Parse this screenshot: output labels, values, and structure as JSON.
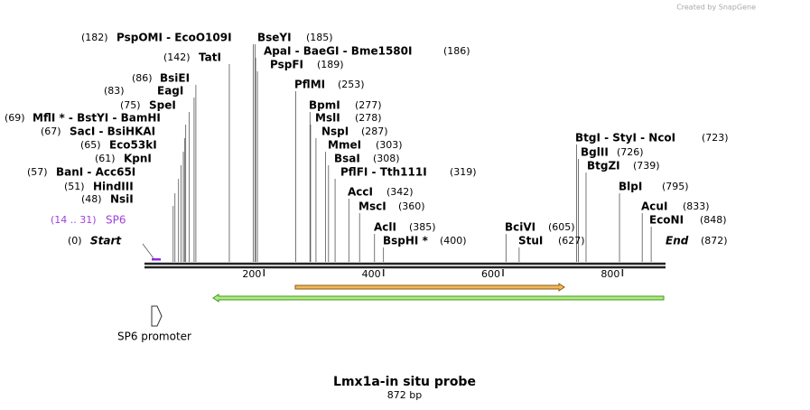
{
  "brand": "Created by SnapGene",
  "title": "Lmx1a-in situ probe",
  "length": "872 bp",
  "sites": [
    {
      "label": "PspOMI  -  EcoO109I",
      "position": "(182)"
    },
    {
      "label": "BseYI",
      "position": "(185)"
    },
    {
      "label": "ApaI  -  BaeGI  -  Bme1580I",
      "position": "(186)"
    },
    {
      "label": "TatI",
      "position": "(142)"
    },
    {
      "label": "PspFI",
      "position": "(189)"
    },
    {
      "label": "BsiEI",
      "position": "(86)"
    },
    {
      "label": "PflMI",
      "position": "(253)"
    },
    {
      "label": "EagI",
      "position": "(83)"
    },
    {
      "label": "SpeI",
      "position": "(75)"
    },
    {
      "label": "BpmI",
      "position": "(277)"
    },
    {
      "label": "MflI *  -  BstYI  -  BamHI",
      "position": "(69)"
    },
    {
      "label": "MslI",
      "position": "(278)"
    },
    {
      "label": "SacI  -  BsiHKAI",
      "position": "(67)"
    },
    {
      "label": "NspI",
      "position": "(287)"
    },
    {
      "label": "Eco53kI",
      "position": "(65)"
    },
    {
      "label": "MmeI",
      "position": "(303)"
    },
    {
      "label": "KpnI",
      "position": "(61)"
    },
    {
      "label": "BsaI",
      "position": "(308)"
    },
    {
      "label": "BanI  -  Acc65I",
      "position": "(57)"
    },
    {
      "label": "PflFI  -  Tth111I",
      "position": "(319)"
    },
    {
      "label": "HindIII",
      "position": "(51)"
    },
    {
      "label": "AccI",
      "position": "(342)"
    },
    {
      "label": "NsiI",
      "position": "(48)"
    },
    {
      "label": "MscI",
      "position": "(360)"
    },
    {
      "label": "AclI",
      "position": "(385)"
    },
    {
      "label": "BspHI *",
      "position": "(400)"
    },
    {
      "label": "BtgI  -  StyI  -  NcoI",
      "position": "(723)"
    },
    {
      "label": "BglII",
      "position": "(726)"
    },
    {
      "label": "BtgZI",
      "position": "(739)"
    },
    {
      "label": "BlpI",
      "position": "(795)"
    },
    {
      "label": "AcuI",
      "position": "(833)"
    },
    {
      "label": "EcoNI",
      "position": "(848)"
    },
    {
      "label": "BciVI",
      "position": "(605)"
    },
    {
      "label": "StuI",
      "position": "(627)"
    }
  ],
  "start": {
    "label": "Start",
    "position": "(0)"
  },
  "end": {
    "label": "End",
    "position": "(872)"
  },
  "sp6": {
    "label": "SP6",
    "range": "(14 .. 31)"
  },
  "promoter": "SP6 promoter",
  "ruler": {
    "ticks": [
      200,
      400,
      600,
      800
    ]
  }
}
